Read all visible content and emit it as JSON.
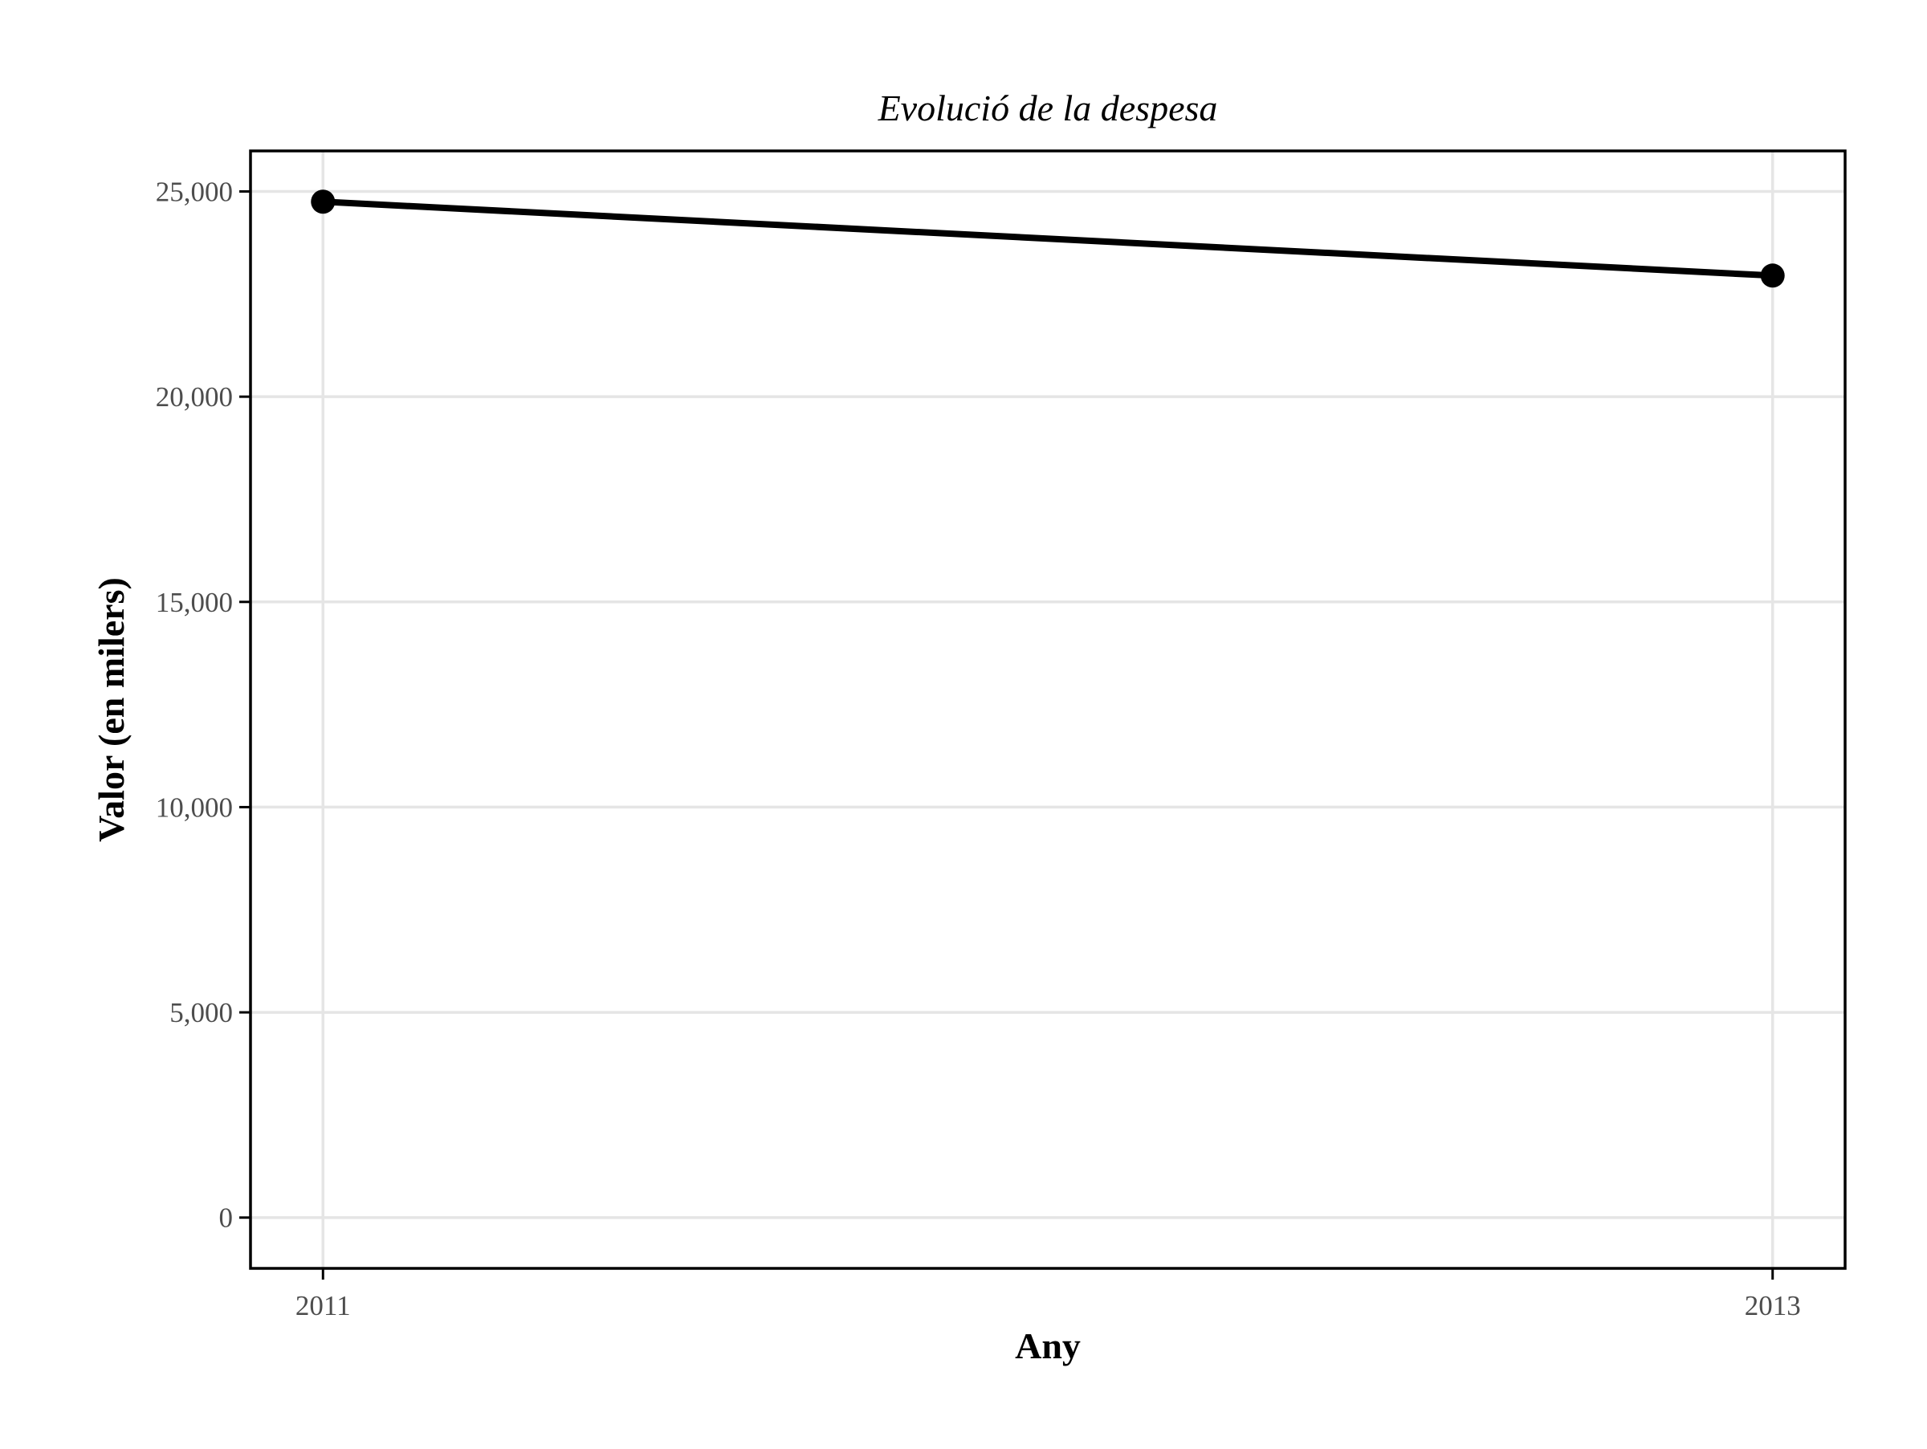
{
  "chart_data": {
    "type": "line",
    "title": "Evolució de la despesa",
    "xlabel": "Any",
    "ylabel": "Valor (en milers)",
    "x": [
      2011,
      2013
    ],
    "x_ticks": [
      "2011",
      "2013"
    ],
    "series": [
      {
        "values": [
          24750,
          22950
        ]
      }
    ],
    "y_ticks": [
      0,
      5000,
      10000,
      15000,
      20000,
      25000
    ],
    "y_tick_labels": [
      "0",
      "5,000",
      "10,000",
      "15,000",
      "20,000",
      "25,000"
    ],
    "ylim": [
      -1237.5,
      25987.5
    ],
    "xlim": [
      2010.9,
      2013.1
    ],
    "grid": true,
    "legend": "none",
    "colors": {
      "series": "#000000",
      "grid": "#e5e5e5",
      "tick_label": "#4d4d4d"
    }
  }
}
